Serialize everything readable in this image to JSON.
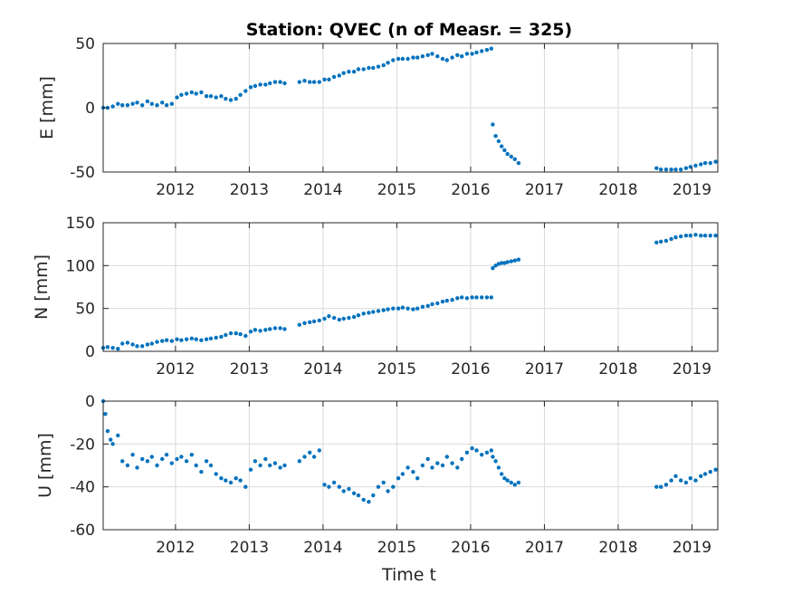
{
  "chart_data": {
    "type": "scatter",
    "title": "Station: QVEC (n of Measr. = 325)",
    "xlabel": "Time t",
    "xlim": [
      2011.02,
      2019.35
    ],
    "xticks": [
      2012,
      2013,
      2014,
      2015,
      2016,
      2017,
      2018,
      2019
    ],
    "xtick_labels": [
      "2012",
      "2013",
      "2014",
      "2015",
      "2016",
      "2017",
      "2018",
      "2019"
    ],
    "grid": true,
    "marker_color": "#0072BD",
    "panels": [
      {
        "name": "E",
        "ylabel": "E [mm]",
        "ylim": [
          -50,
          50
        ],
        "yticks": [
          -50,
          0,
          50
        ],
        "ytick_labels": [
          "-50",
          "0",
          "50"
        ],
        "x": [
          2011.02,
          2011.08,
          2011.15,
          2011.22,
          2011.28,
          2011.35,
          2011.42,
          2011.48,
          2011.55,
          2011.62,
          2011.68,
          2011.75,
          2011.82,
          2011.88,
          2011.95,
          2012.02,
          2012.08,
          2012.15,
          2012.22,
          2012.28,
          2012.35,
          2012.42,
          2012.48,
          2012.55,
          2012.62,
          2012.68,
          2012.75,
          2012.82,
          2012.88,
          2012.95,
          2013.02,
          2013.08,
          2013.15,
          2013.22,
          2013.28,
          2013.35,
          2013.42,
          2013.48,
          2013.68,
          2013.75,
          2013.82,
          2013.88,
          2013.95,
          2014.02,
          2014.08,
          2014.15,
          2014.22,
          2014.28,
          2014.35,
          2014.42,
          2014.48,
          2014.55,
          2014.62,
          2014.68,
          2014.75,
          2014.82,
          2014.88,
          2014.95,
          2015.02,
          2015.08,
          2015.15,
          2015.22,
          2015.28,
          2015.35,
          2015.42,
          2015.48,
          2015.55,
          2015.62,
          2015.68,
          2015.75,
          2015.82,
          2015.88,
          2015.95,
          2016.02,
          2016.08,
          2016.15,
          2016.22,
          2016.28,
          2016.3,
          2016.34,
          2016.38,
          2016.42,
          2016.46,
          2016.5,
          2016.55,
          2016.6,
          2016.65,
          2018.52,
          2018.58,
          2018.65,
          2018.72,
          2018.78,
          2018.85,
          2018.92,
          2018.98,
          2019.05,
          2019.12,
          2019.18,
          2019.25,
          2019.32
        ],
        "y": [
          0,
          0,
          1,
          3,
          2,
          2,
          3,
          4,
          2,
          5,
          3,
          2,
          4,
          2,
          3,
          8,
          10,
          11,
          12,
          11,
          12,
          9,
          9,
          8,
          9,
          7,
          6,
          7,
          10,
          13,
          16,
          17,
          18,
          18,
          19,
          20,
          20,
          19,
          20,
          21,
          20,
          20,
          20,
          22,
          22,
          24,
          25,
          27,
          28,
          28,
          30,
          30,
          31,
          31,
          32,
          33,
          35,
          37,
          38,
          38,
          38,
          39,
          39,
          40,
          41,
          42,
          40,
          38,
          37,
          39,
          41,
          40,
          42,
          42,
          43,
          44,
          45,
          46,
          -13,
          -22,
          -26,
          -30,
          -33,
          -36,
          -38,
          -40,
          -43,
          -47,
          -48,
          -48,
          -48,
          -48,
          -48,
          -47,
          -46,
          -45,
          -44,
          -43,
          -43,
          -42
        ]
      },
      {
        "name": "N",
        "ylabel": "N [mm]",
        "ylim": [
          0,
          150
        ],
        "yticks": [
          0,
          50,
          100,
          150
        ],
        "ytick_labels": [
          "0",
          "50",
          "100",
          "150"
        ],
        "x": [
          2011.02,
          2011.08,
          2011.15,
          2011.22,
          2011.28,
          2011.35,
          2011.42,
          2011.48,
          2011.55,
          2011.62,
          2011.68,
          2011.75,
          2011.82,
          2011.88,
          2011.95,
          2012.02,
          2012.08,
          2012.15,
          2012.22,
          2012.28,
          2012.35,
          2012.42,
          2012.48,
          2012.55,
          2012.62,
          2012.68,
          2012.75,
          2012.82,
          2012.88,
          2012.95,
          2013.02,
          2013.08,
          2013.15,
          2013.22,
          2013.28,
          2013.35,
          2013.42,
          2013.48,
          2013.68,
          2013.75,
          2013.82,
          2013.88,
          2013.95,
          2014.02,
          2014.08,
          2014.15,
          2014.22,
          2014.28,
          2014.35,
          2014.42,
          2014.48,
          2014.55,
          2014.62,
          2014.68,
          2014.75,
          2014.82,
          2014.88,
          2014.95,
          2015.02,
          2015.08,
          2015.15,
          2015.22,
          2015.28,
          2015.35,
          2015.42,
          2015.48,
          2015.55,
          2015.62,
          2015.68,
          2015.75,
          2015.82,
          2015.88,
          2015.95,
          2016.02,
          2016.08,
          2016.15,
          2016.22,
          2016.28,
          2016.3,
          2016.34,
          2016.38,
          2016.42,
          2016.46,
          2016.5,
          2016.55,
          2016.6,
          2016.65,
          2018.52,
          2018.58,
          2018.65,
          2018.72,
          2018.78,
          2018.85,
          2018.92,
          2018.98,
          2019.05,
          2019.12,
          2019.18,
          2019.25,
          2019.32
        ],
        "y": [
          4,
          5,
          4,
          3,
          9,
          10,
          8,
          6,
          6,
          8,
          9,
          11,
          12,
          13,
          12,
          14,
          13,
          14,
          15,
          14,
          13,
          14,
          15,
          16,
          17,
          19,
          21,
          21,
          20,
          18,
          23,
          25,
          24,
          25,
          26,
          27,
          27,
          26,
          31,
          33,
          34,
          35,
          36,
          38,
          41,
          39,
          37,
          38,
          39,
          40,
          42,
          44,
          45,
          46,
          47,
          48,
          49,
          50,
          50,
          51,
          50,
          49,
          50,
          52,
          53,
          55,
          56,
          58,
          59,
          60,
          62,
          63,
          62,
          63,
          63,
          63,
          63,
          63,
          97,
          100,
          102,
          103,
          103,
          104,
          105,
          106,
          107,
          127,
          128,
          129,
          131,
          133,
          134,
          135,
          135,
          136,
          135,
          135,
          135,
          135
        ]
      },
      {
        "name": "U",
        "ylabel": "U [mm]",
        "ylim": [
          -60,
          0
        ],
        "yticks": [
          -60,
          -40,
          -20,
          0
        ],
        "ytick_labels": [
          "-60",
          "-40",
          "-20",
          "0"
        ],
        "x": [
          2011.02,
          2011.05,
          2011.08,
          2011.12,
          2011.15,
          2011.22,
          2011.28,
          2011.35,
          2011.42,
          2011.48,
          2011.55,
          2011.62,
          2011.68,
          2011.75,
          2011.82,
          2011.88,
          2011.95,
          2012.02,
          2012.08,
          2012.15,
          2012.22,
          2012.28,
          2012.35,
          2012.42,
          2012.48,
          2012.55,
          2012.62,
          2012.68,
          2012.75,
          2012.82,
          2012.88,
          2012.95,
          2013.02,
          2013.08,
          2013.15,
          2013.22,
          2013.28,
          2013.35,
          2013.42,
          2013.48,
          2013.68,
          2013.75,
          2013.82,
          2013.88,
          2013.95,
          2014.02,
          2014.08,
          2014.15,
          2014.22,
          2014.28,
          2014.35,
          2014.42,
          2014.48,
          2014.55,
          2014.62,
          2014.68,
          2014.75,
          2014.82,
          2014.88,
          2014.95,
          2015.02,
          2015.08,
          2015.15,
          2015.22,
          2015.28,
          2015.35,
          2015.42,
          2015.48,
          2015.55,
          2015.62,
          2015.68,
          2015.75,
          2015.82,
          2015.88,
          2015.95,
          2016.02,
          2016.08,
          2016.15,
          2016.22,
          2016.28,
          2016.3,
          2016.34,
          2016.38,
          2016.42,
          2016.46,
          2016.5,
          2016.55,
          2016.6,
          2016.65,
          2018.52,
          2018.58,
          2018.65,
          2018.72,
          2018.78,
          2018.85,
          2018.92,
          2018.98,
          2019.05,
          2019.12,
          2019.18,
          2019.25,
          2019.32
        ],
        "y": [
          0,
          -6,
          -14,
          -18,
          -20,
          -16,
          -28,
          -30,
          -25,
          -31,
          -27,
          -28,
          -26,
          -30,
          -27,
          -25,
          -29,
          -27,
          -26,
          -28,
          -25,
          -30,
          -33,
          -28,
          -30,
          -34,
          -36,
          -37,
          -38,
          -36,
          -37,
          -40,
          -32,
          -28,
          -30,
          -27,
          -30,
          -29,
          -31,
          -30,
          -28,
          -26,
          -24,
          -26,
          -23,
          -39,
          -40,
          -38,
          -40,
          -42,
          -41,
          -43,
          -44,
          -46,
          -47,
          -44,
          -40,
          -38,
          -42,
          -40,
          -36,
          -34,
          -31,
          -33,
          -36,
          -30,
          -27,
          -31,
          -29,
          -30,
          -26,
          -29,
          -31,
          -27,
          -24,
          -22,
          -23,
          -25,
          -24,
          -23,
          -26,
          -28,
          -31,
          -34,
          -36,
          -37,
          -38,
          -39,
          -38,
          -40,
          -40,
          -39,
          -37,
          -35,
          -37,
          -38,
          -36,
          -37,
          -35,
          -34,
          -33,
          -32
        ]
      }
    ]
  }
}
